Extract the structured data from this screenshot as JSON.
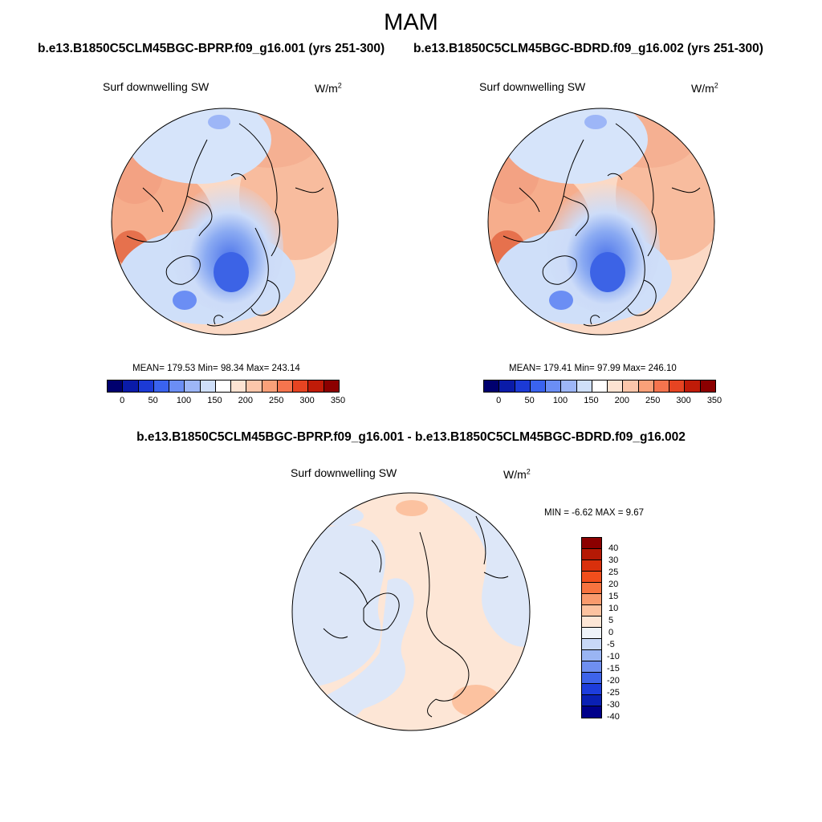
{
  "main_title": "MAM",
  "top_left": {
    "run": "b.e13.B1850C5CLM45BGC-BPRP.f09_g16.001 (yrs 251-300)",
    "variable": "Surf downwelling SW",
    "units_base": "W/m",
    "units_exp": "2",
    "stats": "MEAN= 179.53  Min=  98.34  Max= 243.14"
  },
  "top_right": {
    "run": "b.e13.B1850C5CLM45BGC-BDRD.f09_g16.002 (yrs 251-300)",
    "variable": "Surf downwelling SW",
    "units_base": "W/m",
    "units_exp": "2",
    "stats": "MEAN= 179.41  Min=  97.99  Max= 246.10"
  },
  "bottom": {
    "title": "b.e13.B1850C5CLM45BGC-BPRP.f09_g16.001 - b.e13.B1850C5CLM45BGC-BDRD.f09_g16.002",
    "variable": "Surf downwelling SW",
    "units_base": "W/m",
    "units_exp": "2",
    "stats": "MIN =  -6.62 MAX =   9.67"
  },
  "colorbar_top": {
    "ticks": [
      "0",
      "50",
      "100",
      "150",
      "200",
      "250",
      "300",
      "350"
    ],
    "colors": [
      "#00006e",
      "#0a1ba8",
      "#1c3ad6",
      "#3a63ee",
      "#6b8ef4",
      "#9db6f7",
      "#cfdff9",
      "#ffffff",
      "#fde3d2",
      "#fcc6aa",
      "#f9a079",
      "#f5744e",
      "#e64422",
      "#c01b08",
      "#8c0000"
    ]
  },
  "colorbar_diff": {
    "ticks": [
      "40",
      "30",
      "25",
      "20",
      "15",
      "10",
      "5",
      "0",
      "-5",
      "-10",
      "-15",
      "-20",
      "-25",
      "-30",
      "-40"
    ],
    "colors": [
      "#8c0000",
      "#b51905",
      "#d9300c",
      "#f14e1c",
      "#f7733f",
      "#f99a6d",
      "#fcc2a0",
      "#fde6d6",
      "#eef2f8",
      "#c8d8f7",
      "#9ab5f3",
      "#6f8ff0",
      "#3e64ea",
      "#1d3ddc",
      "#0a20b4",
      "#00008a"
    ]
  },
  "legend_colors": {
    "land_outline": "#000000",
    "map_border": "#000000"
  }
}
